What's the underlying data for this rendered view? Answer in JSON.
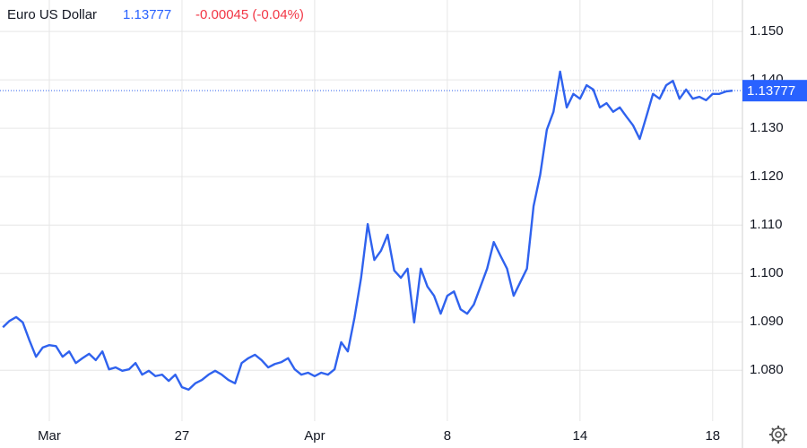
{
  "header": {
    "title": "Euro US Dollar",
    "price": "1.13777",
    "change": "-0.00045 (-0.04%)"
  },
  "chart_data": {
    "type": "line",
    "categories": [
      null,
      null,
      null,
      null,
      null,
      null,
      null,
      "Mar",
      null,
      null,
      null,
      null,
      null,
      null,
      null,
      null,
      null,
      null,
      null,
      null,
      null,
      null,
      null,
      null,
      null,
      null,
      null,
      "27",
      null,
      null,
      null,
      null,
      null,
      null,
      null,
      null,
      null,
      null,
      null,
      null,
      null,
      null,
      null,
      null,
      null,
      null,
      null,
      "Apr",
      null,
      null,
      null,
      null,
      null,
      null,
      null,
      null,
      null,
      null,
      null,
      null,
      null,
      null,
      null,
      null,
      null,
      null,
      null,
      "8",
      null,
      null,
      null,
      null,
      null,
      null,
      null,
      null,
      null,
      null,
      null,
      null,
      null,
      null,
      null,
      null,
      null,
      null,
      null,
      "14",
      null,
      null,
      null,
      null,
      null,
      null,
      null,
      null,
      null,
      null,
      null,
      null,
      null,
      null,
      null,
      null,
      null,
      null,
      null,
      "18",
      null,
      null,
      null
    ],
    "series": [
      {
        "color": "#2f62ee",
        "values": [
          1.0889,
          1.0902,
          1.091,
          1.0899,
          1.0862,
          1.0828,
          1.0847,
          1.0852,
          1.085,
          1.0828,
          1.0839,
          1.0815,
          1.0825,
          1.0834,
          1.0821,
          1.0839,
          1.0802,
          1.0806,
          1.0799,
          1.0802,
          1.0815,
          1.0791,
          1.0799,
          1.0788,
          1.0791,
          1.0778,
          1.0791,
          1.0765,
          1.076,
          1.0773,
          1.078,
          1.0791,
          1.0799,
          1.0791,
          1.078,
          1.0773,
          1.0815,
          1.0825,
          1.0832,
          1.0821,
          1.0806,
          1.0813,
          1.0817,
          1.0825,
          1.0802,
          1.0791,
          1.0795,
          1.0788,
          1.0795,
          1.0791,
          1.0802,
          1.0858,
          1.0839,
          1.0908,
          1.0991,
          1.1102,
          1.1028,
          1.1047,
          1.108,
          1.1006,
          1.0991,
          1.101,
          1.0899,
          1.101,
          1.0973,
          1.0954,
          1.0917,
          1.0954,
          1.0963,
          1.0926,
          1.0917,
          1.0936,
          1.0973,
          1.101,
          1.1065,
          1.1037,
          1.101,
          1.0954,
          1.0982,
          1.101,
          1.1139,
          1.1204,
          1.1297,
          1.1334,
          1.1417,
          1.1343,
          1.1371,
          1.1361,
          1.1389,
          1.138,
          1.1343,
          1.1352,
          1.1334,
          1.1343,
          1.1324,
          1.1306,
          1.1278,
          1.1324,
          1.1371,
          1.1361,
          1.1389,
          1.1398,
          1.1361,
          1.138,
          1.1361,
          1.1365,
          1.1358,
          1.1371,
          1.1371,
          1.1376,
          1.13777
        ]
      }
    ],
    "ylim": [
      1.0695,
      1.1565
    ],
    "yticks": [
      {
        "value": 1.08,
        "label": "1.080"
      },
      {
        "value": 1.09,
        "label": "1.090"
      },
      {
        "value": 1.1,
        "label": "1.100"
      },
      {
        "value": 1.11,
        "label": "1.110"
      },
      {
        "value": 1.12,
        "label": "1.120"
      },
      {
        "value": 1.13,
        "label": "1.130"
      },
      {
        "value": 1.14,
        "label": "1.140"
      },
      {
        "value": 1.15,
        "label": "1.150"
      }
    ],
    "grid": true
  }
}
